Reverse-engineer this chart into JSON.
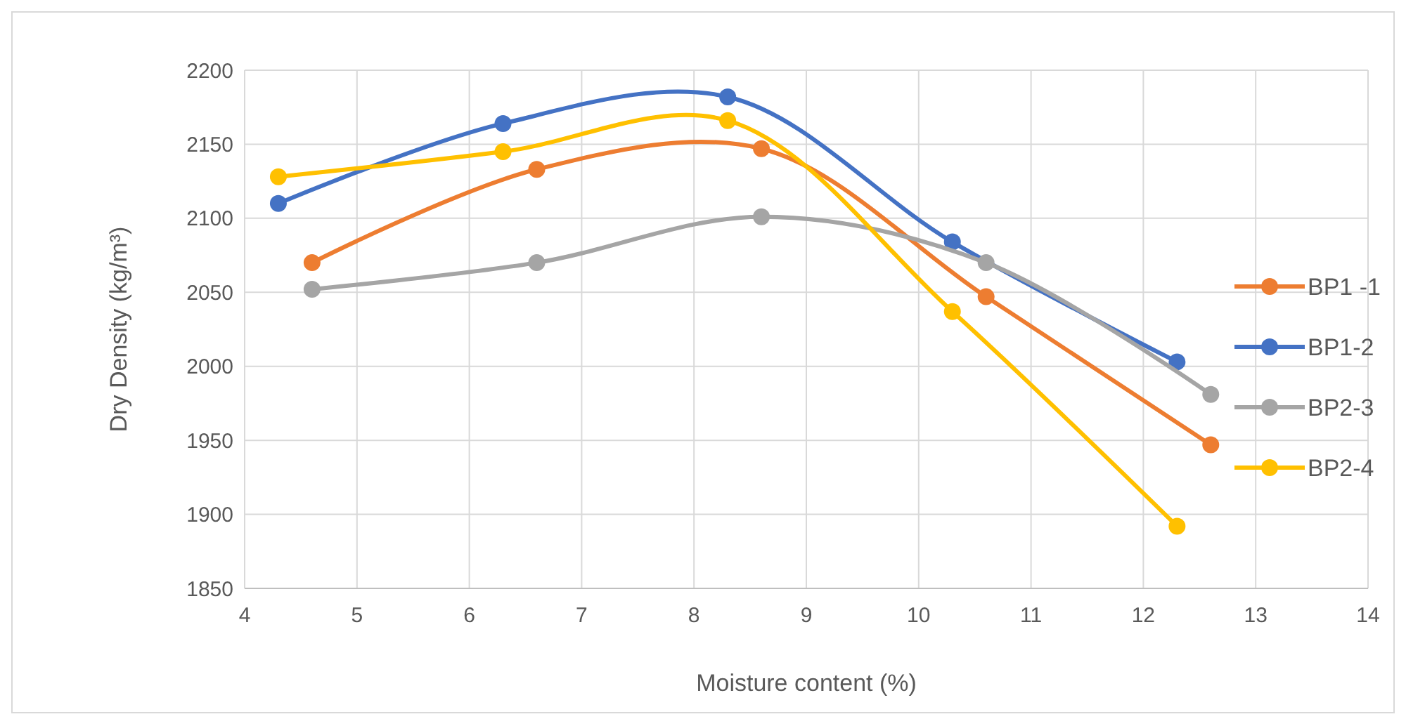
{
  "chart_data": {
    "type": "line",
    "xlabel": "Moisture content (%)",
    "ylabel": "Dry Density (kg/m³)",
    "xlim": [
      4,
      14
    ],
    "xticks": [
      4,
      5,
      6,
      7,
      8,
      9,
      10,
      11,
      12,
      13,
      14
    ],
    "ylim": [
      1850,
      2200
    ],
    "yticks": [
      1850,
      1900,
      1950,
      2000,
      2050,
      2100,
      2150,
      2200
    ],
    "grid": true,
    "legend": "right",
    "marker": "circle",
    "line_style": "solid",
    "series": [
      {
        "name": "BP1 -1",
        "color": "#ed7d31",
        "x": [
          4.6,
          6.6,
          8.6,
          10.6,
          12.6
        ],
        "values": [
          2070,
          2133,
          2147,
          2047,
          1947
        ]
      },
      {
        "name": "BP1-2",
        "color": "#4472c4",
        "x": [
          4.3,
          6.3,
          8.3,
          10.3,
          12.3
        ],
        "values": [
          2110,
          2164,
          2182,
          2084,
          2003
        ]
      },
      {
        "name": "BP2-3",
        "color": "#a5a5a5",
        "x": [
          4.6,
          6.6,
          8.6,
          10.6,
          12.6
        ],
        "values": [
          2052,
          2070,
          2101,
          2070,
          1981
        ]
      },
      {
        "name": "BP2-4",
        "color": "#ffc000",
        "x": [
          4.3,
          6.3,
          8.3,
          10.3,
          12.3
        ],
        "values": [
          2128,
          2145,
          2166,
          2037,
          1892
        ]
      }
    ]
  }
}
